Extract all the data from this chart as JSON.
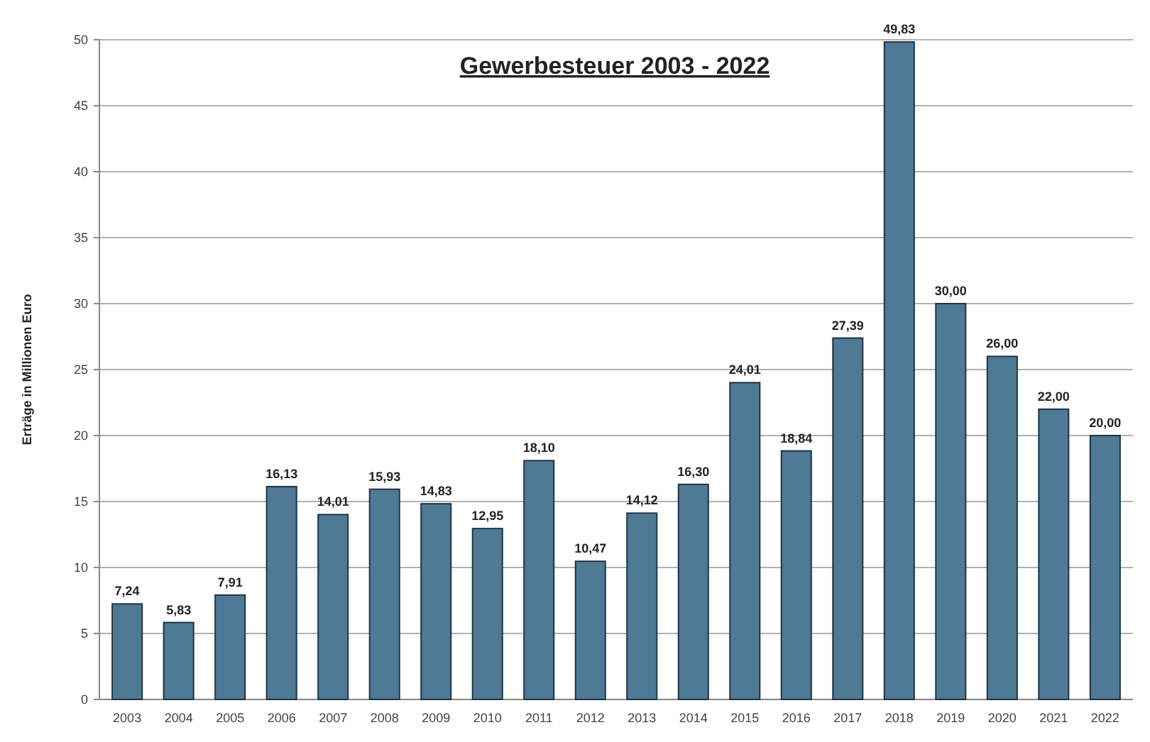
{
  "chart_data": {
    "type": "bar",
    "title": "Gewerbesteuer 2003 - 2022",
    "ylabel": "Erträge in Millionen Euro",
    "categories": [
      "2003",
      "2004",
      "2005",
      "2006",
      "2007",
      "2008",
      "2009",
      "2010",
      "2011",
      "2012",
      "2013",
      "2014",
      "2015",
      "2016",
      "2017",
      "2018",
      "2019",
      "2020",
      "2021",
      "2022"
    ],
    "values": [
      7.24,
      5.83,
      7.91,
      16.13,
      14.01,
      15.93,
      14.83,
      12.95,
      18.1,
      10.47,
      14.12,
      16.3,
      24.01,
      18.84,
      27.39,
      49.83,
      30,
      26,
      22,
      20
    ],
    "value_labels": [
      "7,24",
      "5,83",
      "7,91",
      "16,13",
      "14,01",
      "15,93",
      "14,83",
      "12,95",
      "18,10",
      "10,47",
      "14,12",
      "16,30",
      "24,01",
      "18,84",
      "27,39",
      "49,83",
      "30,00",
      "26,00",
      "22,00",
      "20,00"
    ],
    "color": "#4f7a96",
    "ylim": [
      0,
      50
    ],
    "yticks": [
      0,
      5,
      10,
      15,
      20,
      25,
      30,
      35,
      40,
      45,
      50
    ],
    "grid": "y"
  }
}
